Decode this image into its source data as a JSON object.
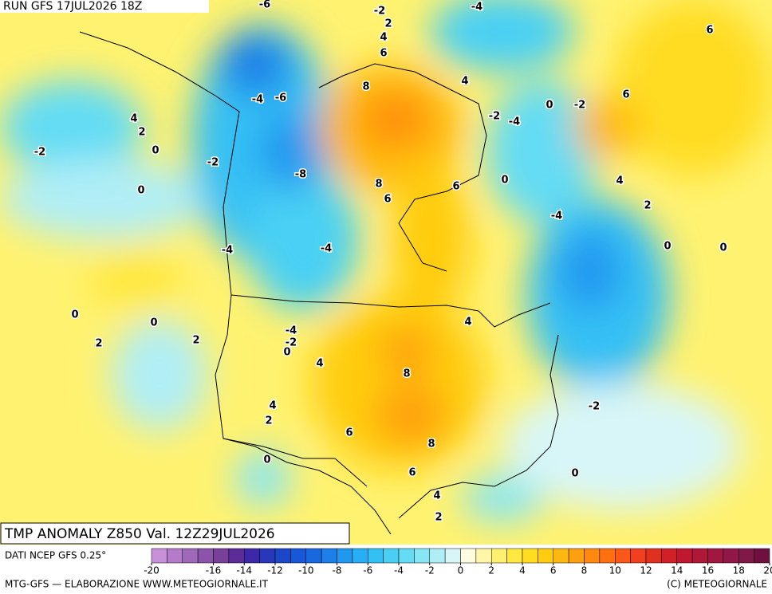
{
  "header": {
    "run": "RUN GFS 17JUL2026 18Z"
  },
  "title": "TMP ANOMALY Z850 Val. 12Z29JUL2026",
  "source": "DATI NCEP GFS 0.25°",
  "credit_left": "MTG-GFS — ELABORAZIONE WWW.METEOGIORNALE.IT",
  "credit_right": "(C) METEOGIORNALE",
  "contour_labels": [
    -6,
    -2,
    2,
    4,
    6,
    8,
    4,
    -4,
    6,
    6,
    0,
    -2,
    -2,
    -4,
    -4,
    -6,
    4,
    2,
    0,
    -2,
    -2,
    -8,
    8,
    6,
    6,
    0,
    4,
    2,
    0,
    -4,
    0,
    0,
    -4,
    -4,
    0,
    0,
    4,
    -4,
    -2,
    0,
    2,
    2,
    4,
    8,
    4,
    2,
    -2,
    6,
    8,
    0,
    6,
    0,
    4,
    2
  ],
  "colorbar": {
    "range": [
      -20,
      20
    ],
    "ticks": [
      -20,
      -16,
      -14,
      -12,
      -10,
      -8,
      -6,
      -4,
      -2,
      0,
      2,
      4,
      6,
      8,
      10,
      12,
      14,
      16,
      18,
      20
    ],
    "colors": [
      "#c890d8",
      "#b47cc8",
      "#a068b8",
      "#8c54a8",
      "#784098",
      "#5c2c98",
      "#3c28a8",
      "#2838b8",
      "#1c48c8",
      "#1858d8",
      "#1868e0",
      "#1c80e8",
      "#2098f0",
      "#28aef4",
      "#34c0f4",
      "#48d0f4",
      "#64dcf4",
      "#88e6f4",
      "#b0eef6",
      "#d8f6f8",
      "#fffce0",
      "#fff6a8",
      "#fff070",
      "#ffe840",
      "#ffdc20",
      "#ffcc10",
      "#ffb810",
      "#ffa010",
      "#ff8810",
      "#ff7010",
      "#f85818",
      "#f04020",
      "#e03020",
      "#d02028",
      "#c01830",
      "#b01838",
      "#a01840",
      "#901848",
      "#801848",
      "#701040"
    ]
  }
}
